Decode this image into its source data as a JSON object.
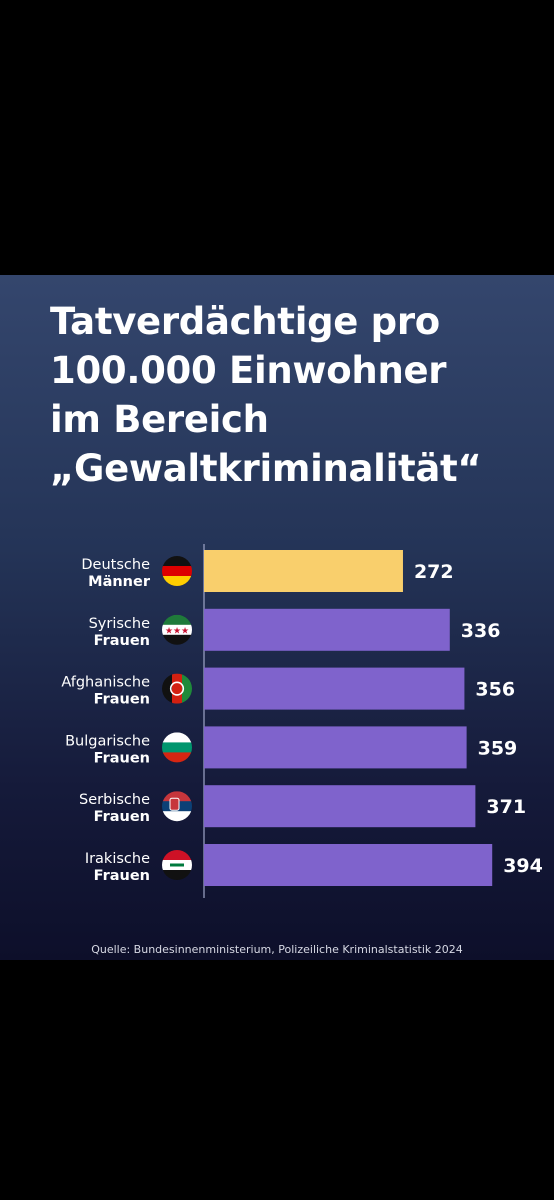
{
  "title_lines": [
    "Tatverdächtige pro",
    "100.000 Einwohner",
    "im Bereich",
    "„Gewaltkriminalität“"
  ],
  "source": "Quelle: Bundesinnenministerium, Polizeiliche Kriminalstatistik 2024",
  "colors": {
    "highlight": "#f9cf6c",
    "bar": "#7f63cc",
    "text": "#ffffff",
    "axis": "#9fa6c8"
  },
  "chart_data": {
    "type": "bar",
    "orientation": "horizontal",
    "categories": [
      {
        "line1": "Deutsche",
        "line2": "Männer",
        "flag": "germany-flag-icon"
      },
      {
        "line1": "Syrische",
        "line2": "Frauen",
        "flag": "syria-flag-icon"
      },
      {
        "line1": "Afghanische",
        "line2": "Frauen",
        "flag": "afghanistan-flag-icon"
      },
      {
        "line1": "Bulgarische",
        "line2": "Frauen",
        "flag": "bulgaria-flag-icon"
      },
      {
        "line1": "Serbische",
        "line2": "Frauen",
        "flag": "serbia-flag-icon"
      },
      {
        "line1": "Irakische",
        "line2": "Frauen",
        "flag": "iraq-flag-icon"
      }
    ],
    "values": [
      272,
      336,
      356,
      359,
      371,
      394
    ],
    "highlight_index": 0,
    "xlim": [
      0,
      400
    ],
    "grid": false,
    "legend": "none"
  }
}
